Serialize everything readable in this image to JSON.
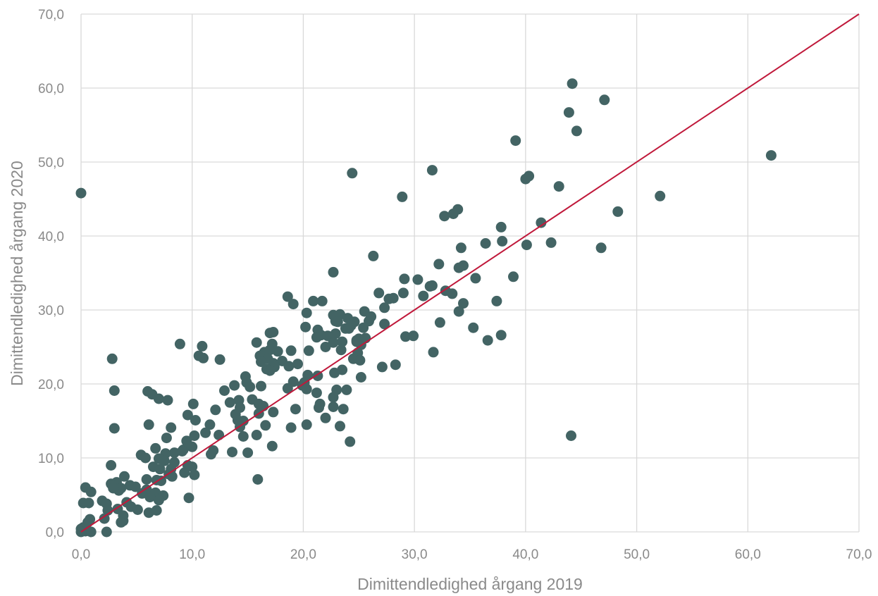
{
  "chart_data": {
    "type": "scatter",
    "title": "",
    "xlabel": "Dimittendledighed årgang 2019",
    "ylabel": "Dimittendledighed årgang 2020",
    "xlim": [
      0,
      70
    ],
    "ylim": [
      0,
      70
    ],
    "x_ticks": [
      "0,0",
      "10,0",
      "20,0",
      "30,0",
      "40,0",
      "50,0",
      "60,0",
      "70,0"
    ],
    "y_ticks": [
      "0,0",
      "10,0",
      "20,0",
      "30,0",
      "40,0",
      "50,0",
      "60,0",
      "70,0"
    ],
    "grid": true,
    "legend": "none",
    "reference_line": {
      "from": [
        0,
        0
      ],
      "to": [
        70,
        70
      ],
      "color": "#c0183a"
    },
    "marker_color": "#436464",
    "points": [
      [
        0.0,
        45.8
      ],
      [
        44.2,
        60.6
      ],
      [
        47.1,
        58.4
      ],
      [
        43.9,
        56.7
      ],
      [
        44.6,
        54.2
      ],
      [
        39.1,
        52.9
      ],
      [
        62.1,
        50.9
      ],
      [
        31.6,
        48.9
      ],
      [
        24.4,
        48.5
      ],
      [
        40.3,
        48.1
      ],
      [
        40.0,
        47.7
      ],
      [
        43.0,
        46.7
      ],
      [
        52.1,
        45.4
      ],
      [
        28.9,
        45.3
      ],
      [
        48.3,
        43.3
      ],
      [
        33.9,
        43.6
      ],
      [
        33.5,
        43.0
      ],
      [
        32.7,
        42.7
      ],
      [
        41.4,
        41.8
      ],
      [
        37.8,
        41.2
      ],
      [
        37.9,
        39.3
      ],
      [
        42.3,
        39.1
      ],
      [
        36.4,
        39.0
      ],
      [
        40.1,
        38.8
      ],
      [
        46.8,
        38.4
      ],
      [
        34.2,
        38.4
      ],
      [
        26.3,
        37.3
      ],
      [
        32.2,
        36.2
      ],
      [
        34.4,
        36.0
      ],
      [
        34.0,
        35.7
      ],
      [
        22.7,
        35.1
      ],
      [
        38.9,
        34.5
      ],
      [
        35.5,
        34.3
      ],
      [
        29.1,
        34.2
      ],
      [
        30.3,
        34.1
      ],
      [
        31.4,
        33.2
      ],
      [
        31.6,
        33.3
      ],
      [
        27.7,
        31.5
      ],
      [
        28.1,
        31.6
      ],
      [
        18.6,
        31.8
      ],
      [
        20.9,
        31.2
      ],
      [
        21.7,
        31.2
      ],
      [
        19.1,
        30.8
      ],
      [
        30.8,
        31.9
      ],
      [
        27.3,
        30.3
      ],
      [
        29.0,
        32.3
      ],
      [
        32.8,
        32.6
      ],
      [
        33.4,
        32.2
      ],
      [
        26.8,
        32.3
      ],
      [
        37.4,
        31.2
      ],
      [
        34.4,
        30.9
      ],
      [
        34.0,
        29.8
      ],
      [
        20.3,
        29.6
      ],
      [
        22.7,
        29.3
      ],
      [
        23.3,
        29.4
      ],
      [
        22.9,
        28.5
      ],
      [
        24.0,
        28.9
      ],
      [
        25.5,
        29.8
      ],
      [
        26.1,
        29.1
      ],
      [
        23.8,
        27.5
      ],
      [
        27.3,
        28.1
      ],
      [
        32.3,
        28.3
      ],
      [
        35.3,
        27.6
      ],
      [
        24.6,
        28.4
      ],
      [
        25.9,
        28.5
      ],
      [
        23.1,
        28.4
      ],
      [
        24.3,
        27.9
      ],
      [
        20.2,
        27.7
      ],
      [
        21.3,
        27.3
      ],
      [
        22.9,
        26.8
      ],
      [
        21.6,
        26.6
      ],
      [
        21.2,
        26.3
      ],
      [
        22.2,
        26.5
      ],
      [
        24.1,
        27.5
      ],
      [
        25.4,
        27.6
      ],
      [
        29.2,
        26.4
      ],
      [
        29.9,
        26.5
      ],
      [
        37.8,
        26.6
      ],
      [
        36.6,
        25.9
      ],
      [
        17.3,
        27.0
      ],
      [
        17.0,
        26.9
      ],
      [
        24.8,
        25.9
      ],
      [
        25.0,
        26.1
      ],
      [
        25.6,
        26.2
      ],
      [
        22.7,
        25.6
      ],
      [
        23.5,
        25.7
      ],
      [
        22.0,
        25.0
      ],
      [
        25.2,
        25.3
      ],
      [
        24.8,
        25.7
      ],
      [
        15.8,
        25.6
      ],
      [
        8.9,
        25.4
      ],
      [
        10.9,
        25.1
      ],
      [
        17.2,
        25.4
      ],
      [
        18.9,
        24.5
      ],
      [
        20.5,
        24.5
      ],
      [
        23.4,
        24.6
      ],
      [
        24.9,
        24.2
      ],
      [
        31.7,
        24.3
      ],
      [
        16.5,
        24.3
      ],
      [
        17.0,
        24.6
      ],
      [
        17.7,
        24.4
      ],
      [
        16.1,
        23.8
      ],
      [
        16.8,
        23.4
      ],
      [
        18.1,
        23.1
      ],
      [
        11.0,
        23.5
      ],
      [
        10.6,
        23.8
      ],
      [
        2.8,
        23.4
      ],
      [
        12.5,
        23.3
      ],
      [
        16.2,
        23.0
      ],
      [
        17.3,
        22.8
      ],
      [
        19.5,
        22.7
      ],
      [
        18.7,
        22.4
      ],
      [
        17.4,
        22.3
      ],
      [
        16.7,
        22.0
      ],
      [
        17.0,
        21.8
      ],
      [
        21.3,
        21.1
      ],
      [
        20.4,
        21.2
      ],
      [
        20.1,
        20.2
      ],
      [
        19.9,
        19.8
      ],
      [
        22.8,
        21.5
      ],
      [
        23.5,
        21.9
      ],
      [
        24.5,
        23.4
      ],
      [
        25.1,
        23.2
      ],
      [
        25.2,
        20.9
      ],
      [
        27.1,
        22.3
      ],
      [
        28.3,
        22.6
      ],
      [
        14.8,
        21.0
      ],
      [
        14.9,
        20.2
      ],
      [
        15.2,
        19.6
      ],
      [
        13.8,
        19.8
      ],
      [
        12.9,
        19.1
      ],
      [
        16.2,
        19.7
      ],
      [
        19.1,
        20.3
      ],
      [
        18.6,
        19.4
      ],
      [
        20.3,
        19.3
      ],
      [
        23.0,
        19.2
      ],
      [
        23.9,
        19.2
      ],
      [
        22.7,
        18.2
      ],
      [
        21.2,
        18.8
      ],
      [
        6.0,
        19.0
      ],
      [
        6.4,
        18.6
      ],
      [
        3.0,
        19.1
      ],
      [
        7.0,
        18.0
      ],
      [
        7.8,
        17.8
      ],
      [
        13.4,
        17.5
      ],
      [
        14.2,
        17.8
      ],
      [
        15.4,
        17.9
      ],
      [
        16.0,
        17.3
      ],
      [
        16.4,
        17.0
      ],
      [
        14.3,
        16.8
      ],
      [
        17.3,
        16.2
      ],
      [
        16.0,
        16.0
      ],
      [
        12.1,
        16.5
      ],
      [
        13.9,
        15.9
      ],
      [
        10.1,
        17.3
      ],
      [
        9.6,
        15.8
      ],
      [
        10.3,
        15.1
      ],
      [
        19.3,
        16.6
      ],
      [
        21.4,
        16.8
      ],
      [
        21.5,
        17.3
      ],
      [
        22.7,
        16.9
      ],
      [
        23.6,
        16.6
      ],
      [
        22.0,
        15.4
      ],
      [
        14.1,
        15.1
      ],
      [
        14.6,
        15.0
      ],
      [
        14.3,
        14.2
      ],
      [
        16.6,
        14.4
      ],
      [
        11.6,
        14.5
      ],
      [
        11.2,
        13.4
      ],
      [
        12.4,
        13.1
      ],
      [
        10.2,
        13.0
      ],
      [
        9.2,
        11.1
      ],
      [
        6.1,
        14.5
      ],
      [
        8.1,
        14.1
      ],
      [
        3.0,
        14.0
      ],
      [
        18.9,
        14.1
      ],
      [
        20.3,
        14.5
      ],
      [
        23.3,
        14.3
      ],
      [
        15.8,
        13.1
      ],
      [
        14.6,
        12.9
      ],
      [
        17.2,
        11.6
      ],
      [
        24.2,
        12.2
      ],
      [
        44.1,
        13.0
      ],
      [
        7.7,
        12.7
      ],
      [
        9.5,
        12.3
      ],
      [
        10.0,
        11.5
      ],
      [
        11.9,
        11.0
      ],
      [
        15.0,
        10.7
      ],
      [
        13.6,
        10.8
      ],
      [
        11.7,
        10.5
      ],
      [
        8.4,
        10.7
      ],
      [
        6.7,
        11.3
      ],
      [
        7.6,
        10.6
      ],
      [
        9.1,
        10.9
      ],
      [
        5.4,
        10.4
      ],
      [
        5.8,
        10.0
      ],
      [
        7.0,
        9.9
      ],
      [
        7.5,
        9.6
      ],
      [
        8.4,
        9.4
      ],
      [
        2.7,
        9.0
      ],
      [
        6.5,
        8.8
      ],
      [
        7.1,
        8.5
      ],
      [
        8.1,
        8.5
      ],
      [
        9.6,
        9.0
      ],
      [
        10.0,
        8.8
      ],
      [
        9.3,
        8.0
      ],
      [
        10.2,
        7.7
      ],
      [
        7.9,
        7.8
      ],
      [
        8.2,
        7.5
      ],
      [
        3.9,
        7.5
      ],
      [
        3.2,
        6.7
      ],
      [
        2.7,
        6.5
      ],
      [
        5.9,
        7.1
      ],
      [
        6.8,
        7.0
      ],
      [
        7.2,
        6.9
      ],
      [
        15.9,
        7.1
      ],
      [
        4.4,
        6.3
      ],
      [
        4.9,
        6.1
      ],
      [
        3.6,
        5.9
      ],
      [
        3.4,
        5.6
      ],
      [
        2.9,
        5.9
      ],
      [
        0.4,
        6.0
      ],
      [
        0.9,
        5.4
      ],
      [
        5.9,
        5.7
      ],
      [
        5.5,
        5.2
      ],
      [
        6.7,
        5.3
      ],
      [
        7.4,
        4.9
      ],
      [
        6.2,
        4.7
      ],
      [
        7.0,
        4.3
      ],
      [
        9.7,
        4.6
      ],
      [
        1.9,
        4.2
      ],
      [
        2.3,
        3.8
      ],
      [
        4.1,
        4.0
      ],
      [
        4.5,
        3.4
      ],
      [
        5.1,
        3.0
      ],
      [
        6.1,
        2.6
      ],
      [
        6.8,
        2.9
      ],
      [
        0.2,
        3.9
      ],
      [
        0.7,
        3.9
      ],
      [
        2.4,
        2.9
      ],
      [
        3.3,
        3.1
      ],
      [
        3.8,
        2.2
      ],
      [
        2.1,
        1.8
      ],
      [
        3.8,
        1.5
      ],
      [
        0.8,
        1.7
      ],
      [
        0.6,
        1.3
      ],
      [
        3.6,
        1.3
      ],
      [
        0.2,
        0.6
      ],
      [
        0.0,
        0.4
      ],
      [
        0.4,
        0.1
      ],
      [
        0.9,
        0.0
      ],
      [
        2.3,
        0.0
      ],
      [
        0.0,
        0.0
      ]
    ]
  }
}
